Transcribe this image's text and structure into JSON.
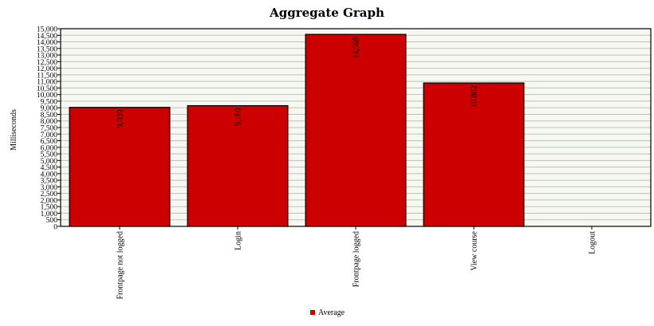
{
  "chart_data": {
    "type": "bar",
    "title": "Aggregate Graph",
    "ylabel": "Milliseconds",
    "xlabel": "",
    "categories": [
      "Frontpage not logged",
      "Login",
      "Frontpage logged",
      "View course",
      "Logout"
    ],
    "series": [
      {
        "name": "Average",
        "values": [
          9030,
          9160,
          14569,
          10882,
          0
        ],
        "labels": [
          "9,030",
          "9,160",
          "14,569",
          "10,882",
          ""
        ]
      }
    ],
    "ylim": [
      0,
      15000
    ],
    "ytick_step": 500,
    "grid": true,
    "legend": "bottom-center",
    "colors": {
      "bar": "#cc0000",
      "bar_stroke": "#000000",
      "plot_bg": "#f8f8f2",
      "grid": "#b9c4b9"
    }
  }
}
